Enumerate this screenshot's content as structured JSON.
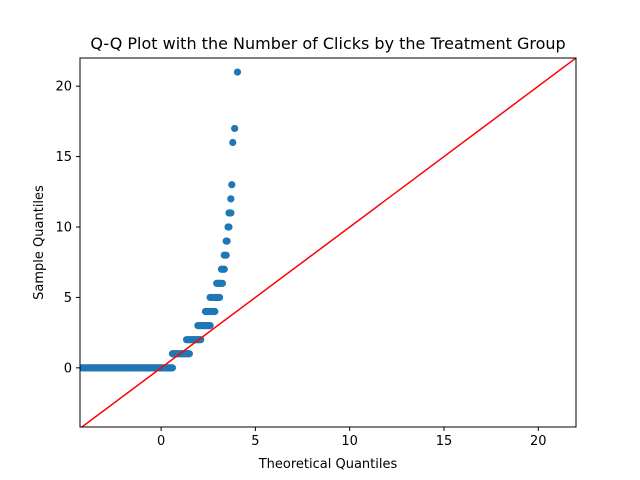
{
  "chart_data": {
    "type": "scatter",
    "title": "Q-Q Plot with the Number of Clicks by the Treatment Group",
    "xlabel": "Theoretical Quantiles",
    "ylabel": "Sample Quantiles",
    "xlim": [
      -4.3,
      22
    ],
    "ylim": [
      -4.2,
      22
    ],
    "xticks": [
      0,
      5,
      10,
      15,
      20
    ],
    "yticks": [
      0,
      5,
      10,
      15,
      20
    ],
    "grid": false,
    "legend": "none",
    "series": [
      {
        "kind": "points",
        "color": "#1f77b4",
        "segments": [
          {
            "y": 0,
            "x_from": -4.2,
            "x_to": 0.6,
            "count": 96
          },
          {
            "y": 1,
            "x_from": 0.6,
            "x_to": 1.5,
            "count": 18
          },
          {
            "y": 2,
            "x_from": 1.35,
            "x_to": 2.1,
            "count": 15
          },
          {
            "y": 3,
            "x_from": 1.95,
            "x_to": 2.6,
            "count": 13
          },
          {
            "y": 4,
            "x_from": 2.35,
            "x_to": 2.85,
            "count": 10
          },
          {
            "y": 5,
            "x_from": 2.6,
            "x_to": 3.1,
            "count": 10
          },
          {
            "y": 6,
            "x_from": 2.95,
            "x_to": 3.25,
            "count": 6
          },
          {
            "y": 7,
            "x_from": 3.2,
            "x_to": 3.35,
            "count": 3
          }
        ],
        "points": [
          [
            3.35,
            8
          ],
          [
            3.45,
            8
          ],
          [
            3.45,
            9
          ],
          [
            3.5,
            9
          ],
          [
            3.55,
            10
          ],
          [
            3.6,
            10
          ],
          [
            3.6,
            11
          ],
          [
            3.65,
            11
          ],
          [
            3.7,
            11
          ],
          [
            3.7,
            12
          ],
          [
            3.75,
            13
          ],
          [
            3.8,
            16
          ],
          [
            3.9,
            17
          ],
          [
            4.05,
            21
          ]
        ]
      },
      {
        "kind": "reference-line",
        "color": "#ff0000",
        "x": [
          -4.3,
          22
        ],
        "y": [
          -4.3,
          22
        ]
      }
    ]
  }
}
